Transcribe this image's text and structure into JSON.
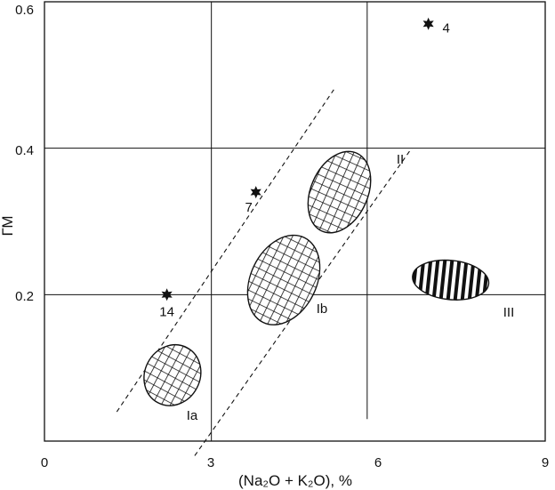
{
  "chart_data": {
    "type": "scatter",
    "title": "",
    "xlabel": "(Na₂O + K₂O), %",
    "ylabel": "ГМ",
    "xlim": [
      0,
      9
    ],
    "ylim": [
      0,
      0.6
    ],
    "xticks": [
      "0",
      "3",
      "6",
      "9"
    ],
    "yticks": [
      "0.2",
      "0.4",
      "0.6"
    ],
    "grid_lines": {
      "x": [
        3,
        5.8
      ],
      "y": [
        0.2,
        0.4
      ]
    },
    "points": [
      {
        "label": "4",
        "x": 6.9,
        "y": 0.57
      },
      {
        "label": "7",
        "x": 3.8,
        "y": 0.34
      },
      {
        "label": "14",
        "x": 2.2,
        "y": 0.2
      }
    ],
    "fields": [
      {
        "label": "Ia",
        "cx": 2.3,
        "cy": 0.09,
        "pattern": "grid"
      },
      {
        "label": "Ib",
        "cx": 4.3,
        "cy": 0.22,
        "pattern": "grid"
      },
      {
        "label": "II",
        "cx": 5.3,
        "cy": 0.34,
        "pattern": "grid"
      },
      {
        "label": "III",
        "cx": 7.3,
        "cy": 0.22,
        "pattern": "vertical-stripes"
      }
    ],
    "trend_band": {
      "upper": [
        [
          1.3,
          0.04
        ],
        [
          5.2,
          0.48
        ]
      ],
      "lower": [
        [
          2.7,
          -0.02
        ],
        [
          6.6,
          0.4
        ]
      ]
    },
    "colors": {
      "ink": "#111111",
      "background": "#ffffff"
    }
  }
}
